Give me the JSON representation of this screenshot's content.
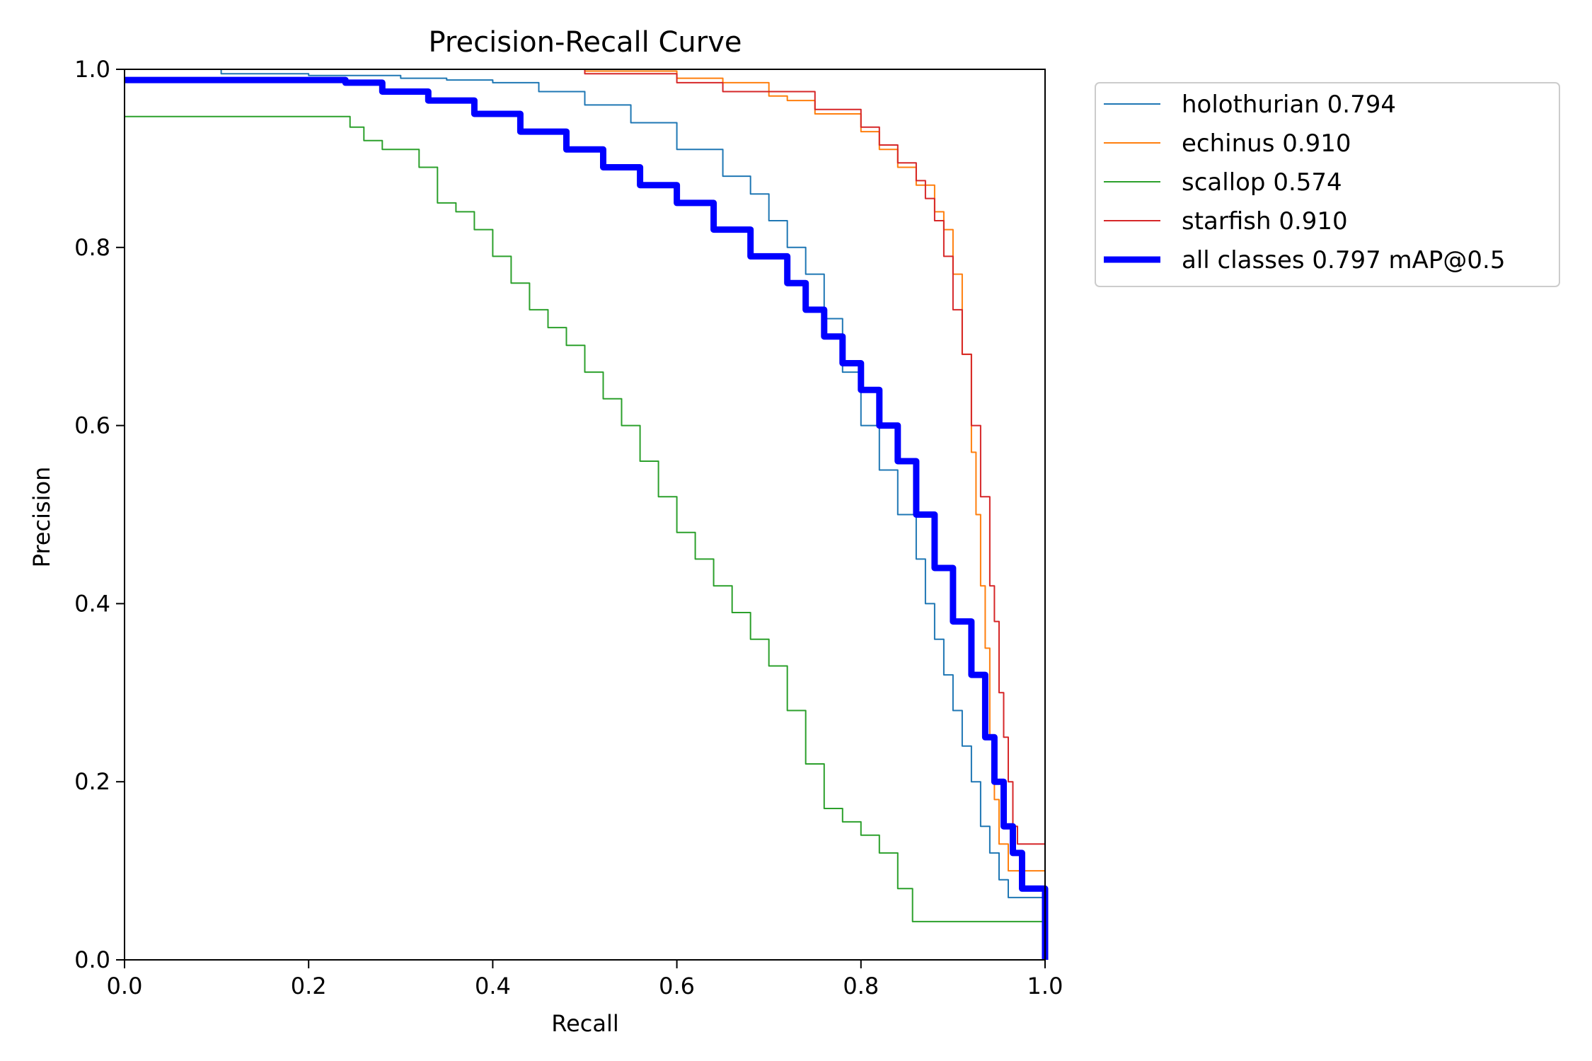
{
  "chart_data": {
    "type": "line",
    "title": "Precision-Recall Curve",
    "xlabel": "Recall",
    "ylabel": "Precision",
    "xlim": [
      0.0,
      1.0
    ],
    "ylim": [
      0.0,
      1.0
    ],
    "xticks": [
      "0.0",
      "0.2",
      "0.4",
      "0.6",
      "0.8",
      "1.0"
    ],
    "yticks": [
      "0.0",
      "0.2",
      "0.4",
      "0.6",
      "0.8",
      "1.0"
    ],
    "grid": false,
    "legend_position": "outside-upper-right",
    "series": [
      {
        "name": "holothurian",
        "label": "holothurian 0.794",
        "color": "#1f77b4",
        "x": [
          0.0,
          0.1,
          0.105,
          0.2,
          0.3,
          0.35,
          0.4,
          0.45,
          0.5,
          0.55,
          0.6,
          0.65,
          0.68,
          0.7,
          0.72,
          0.74,
          0.76,
          0.78,
          0.8,
          0.82,
          0.84,
          0.86,
          0.87,
          0.88,
          0.89,
          0.9,
          0.91,
          0.92,
          0.93,
          0.94,
          0.95,
          0.96,
          1.0
        ],
        "y": [
          1.0,
          1.0,
          0.995,
          0.993,
          0.99,
          0.988,
          0.985,
          0.975,
          0.96,
          0.94,
          0.91,
          0.88,
          0.86,
          0.83,
          0.8,
          0.77,
          0.72,
          0.66,
          0.6,
          0.55,
          0.5,
          0.45,
          0.4,
          0.36,
          0.32,
          0.28,
          0.24,
          0.2,
          0.15,
          0.12,
          0.09,
          0.07,
          0.0
        ]
      },
      {
        "name": "echinus",
        "label": "echinus 0.910",
        "color": "#ff7f0e",
        "x": [
          0.0,
          0.3,
          0.5,
          0.6,
          0.65,
          0.7,
          0.72,
          0.75,
          0.8,
          0.82,
          0.84,
          0.86,
          0.88,
          0.89,
          0.9,
          0.91,
          0.92,
          0.925,
          0.93,
          0.935,
          0.94,
          0.945,
          0.95,
          0.96,
          1.0
        ],
        "y": [
          1.0,
          1.0,
          0.998,
          0.99,
          0.985,
          0.97,
          0.965,
          0.95,
          0.93,
          0.91,
          0.89,
          0.87,
          0.84,
          0.82,
          0.77,
          0.68,
          0.57,
          0.5,
          0.42,
          0.35,
          0.25,
          0.18,
          0.13,
          0.1,
          0.0
        ]
      },
      {
        "name": "scallop",
        "label": "scallop 0.574",
        "color": "#2ca02c",
        "x": [
          0.0,
          0.24,
          0.245,
          0.26,
          0.28,
          0.32,
          0.34,
          0.36,
          0.38,
          0.4,
          0.42,
          0.44,
          0.46,
          0.48,
          0.5,
          0.52,
          0.54,
          0.56,
          0.58,
          0.6,
          0.62,
          0.64,
          0.66,
          0.68,
          0.7,
          0.72,
          0.74,
          0.76,
          0.78,
          0.8,
          0.82,
          0.84,
          0.856,
          1.0
        ],
        "y": [
          0.947,
          0.947,
          0.935,
          0.92,
          0.91,
          0.89,
          0.85,
          0.84,
          0.82,
          0.79,
          0.76,
          0.73,
          0.71,
          0.69,
          0.66,
          0.63,
          0.6,
          0.56,
          0.52,
          0.48,
          0.45,
          0.42,
          0.39,
          0.36,
          0.33,
          0.28,
          0.22,
          0.17,
          0.155,
          0.14,
          0.12,
          0.08,
          0.043,
          0.0
        ]
      },
      {
        "name": "starfish",
        "label": "starfish 0.910",
        "color": "#d62728",
        "x": [
          0.0,
          0.3,
          0.5,
          0.6,
          0.65,
          0.7,
          0.75,
          0.8,
          0.82,
          0.84,
          0.86,
          0.87,
          0.88,
          0.89,
          0.9,
          0.91,
          0.92,
          0.93,
          0.94,
          0.945,
          0.95,
          0.955,
          0.96,
          0.965,
          0.97,
          1.0
        ],
        "y": [
          1.0,
          1.0,
          0.995,
          0.985,
          0.975,
          0.975,
          0.955,
          0.935,
          0.915,
          0.895,
          0.875,
          0.855,
          0.83,
          0.79,
          0.73,
          0.68,
          0.6,
          0.52,
          0.42,
          0.38,
          0.3,
          0.25,
          0.2,
          0.15,
          0.13,
          0.0
        ]
      },
      {
        "name": "all-classes",
        "label": "all classes 0.797 mAP@0.5",
        "color": "#0000ff",
        "thick": true,
        "x": [
          0.0,
          0.24,
          0.28,
          0.33,
          0.38,
          0.43,
          0.48,
          0.52,
          0.56,
          0.6,
          0.64,
          0.68,
          0.72,
          0.74,
          0.76,
          0.78,
          0.8,
          0.82,
          0.84,
          0.86,
          0.88,
          0.9,
          0.92,
          0.935,
          0.945,
          0.955,
          0.965,
          0.975,
          1.0
        ],
        "y": [
          0.988,
          0.985,
          0.975,
          0.965,
          0.95,
          0.93,
          0.91,
          0.89,
          0.87,
          0.85,
          0.82,
          0.79,
          0.76,
          0.73,
          0.7,
          0.67,
          0.64,
          0.6,
          0.56,
          0.5,
          0.44,
          0.38,
          0.32,
          0.25,
          0.2,
          0.15,
          0.12,
          0.08,
          0.0
        ]
      }
    ]
  }
}
